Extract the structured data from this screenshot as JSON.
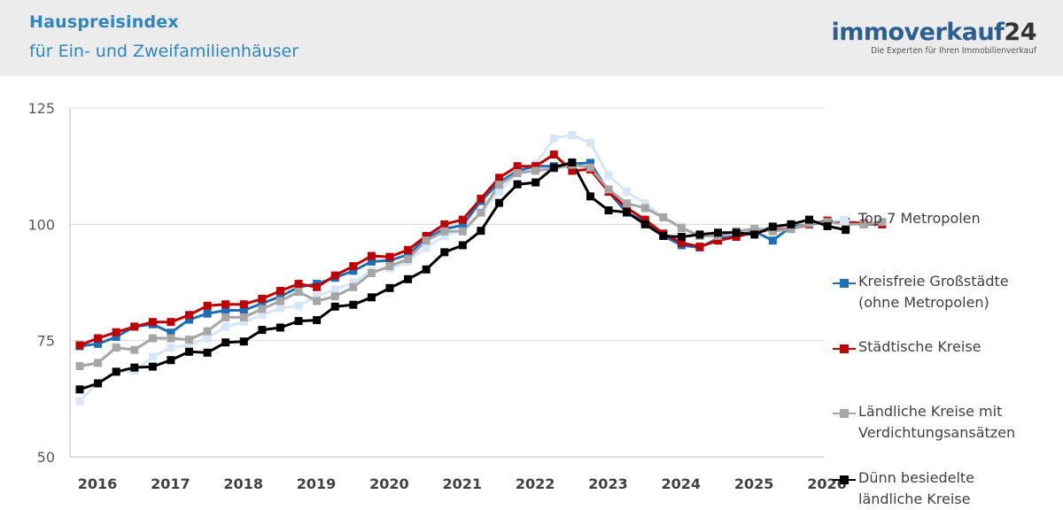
{
  "header": {
    "title": "Hauspreisindex",
    "subtitle": "für Ein- und Zweifamilienhäuser",
    "logo_main": "immoverkauf",
    "logo_num": "24",
    "logo_tagline": "Die Experten für Ihren Immobilienverkauf"
  },
  "chart_data": {
    "type": "line",
    "title": "Hauspreisindex",
    "subtitle": "für Ein- und Zweifamilienhäuser",
    "xlabel": "",
    "ylabel": "",
    "ylim": [
      50,
      125
    ],
    "yticks": [
      50,
      75,
      100,
      125
    ],
    "x_tick_labels": [
      "2016",
      "2017",
      "2018",
      "2019",
      "2020",
      "2021",
      "2022",
      "2023",
      "2024",
      "2025",
      "2026"
    ],
    "x_start": 2016.0,
    "x_step": 0.25,
    "grid": "horizontal",
    "legend_position": "right",
    "series": [
      {
        "name": "Top 7 Metropolen",
        "color": "#d6e6f7",
        "values": [
          62.0,
          66.0,
          68.3,
          68.5,
          71.5,
          73.5,
          74.0,
          75.5,
          78.0,
          79.0,
          80.5,
          82.0,
          82.5,
          84.5,
          86.0,
          87.5,
          90.0,
          90.5,
          92.0,
          95.0,
          97.5,
          99.0,
          102.5,
          107.0,
          111.0,
          113.0,
          118.5,
          119.2,
          117.5,
          110.5,
          107.0,
          104.5,
          101.5,
          99.5,
          97.5,
          97.5,
          98.5,
          99.0,
          99.5,
          99.5,
          100.0,
          100.8,
          100.5,
          100.0,
          100.2
        ]
      },
      {
        "name": "Kreisfreie Großstädte\n(ohne Metropolen)",
        "color": "#1f6db5",
        "values": [
          73.8,
          74.3,
          75.8,
          78.0,
          78.5,
          76.7,
          79.5,
          80.8,
          81.5,
          81.5,
          83.0,
          84.5,
          86.5,
          87.2,
          88.5,
          90.0,
          92.0,
          92.2,
          93.5,
          97.0,
          99.0,
          99.8,
          105.0,
          109.0,
          111.5,
          112.5,
          112.5,
          113.0,
          113.2,
          107.0,
          102.5,
          100.5,
          97.5,
          95.5,
          95.0,
          97.0,
          97.5,
          98.5,
          96.5,
          99.5,
          100.0,
          100.5,
          100.3,
          100.0,
          100.0
        ]
      },
      {
        "name": "Städtische Kreise",
        "color": "#c00000",
        "values": [
          74.0,
          75.5,
          76.8,
          78.0,
          79.0,
          79.0,
          80.5,
          82.5,
          82.8,
          82.8,
          84.0,
          85.7,
          87.2,
          86.5,
          89.0,
          91.0,
          93.2,
          93.0,
          94.5,
          97.5,
          100.0,
          101.0,
          105.5,
          110.0,
          112.5,
          112.5,
          115.0,
          111.5,
          111.8,
          107.0,
          103.5,
          101.0,
          98.0,
          96.0,
          95.2,
          96.5,
          97.3,
          98.3,
          98.8,
          99.0,
          100.0,
          100.8,
          100.5,
          100.2,
          100.0
        ]
      },
      {
        "name": "Ländliche Kreise mit\nVerdichtungsansätzen",
        "color": "#a6a6a6",
        "values": [
          69.5,
          70.2,
          73.5,
          73.0,
          75.5,
          75.5,
          75.2,
          77.0,
          80.0,
          80.0,
          81.8,
          83.5,
          85.5,
          83.5,
          84.5,
          86.5,
          89.5,
          91.0,
          92.5,
          96.5,
          98.5,
          98.5,
          102.5,
          108.5,
          111.0,
          111.5,
          112.0,
          112.8,
          112.2,
          107.5,
          104.5,
          103.5,
          101.5,
          99.2,
          97.5,
          97.5,
          98.5,
          99.0,
          98.5,
          99.0,
          100.2,
          100.5,
          100.0,
          100.0,
          100.5
        ]
      },
      {
        "name": "Dünn besiedelte\nländliche Kreise",
        "color": "#000000",
        "values": [
          64.5,
          65.8,
          68.3,
          69.2,
          69.4,
          70.8,
          72.6,
          72.4,
          74.6,
          74.8,
          77.3,
          77.8,
          79.2,
          79.4,
          82.3,
          82.7,
          84.3,
          86.3,
          88.2,
          90.3,
          94.0,
          95.5,
          98.6,
          104.6,
          108.6,
          109.0,
          112.2,
          113.3,
          106.0,
          103.0,
          102.6,
          100.0,
          97.5,
          97.3,
          97.8,
          98.2,
          98.2,
          97.8,
          99.5,
          100.0,
          101.0,
          99.6,
          98.8
        ]
      }
    ]
  }
}
